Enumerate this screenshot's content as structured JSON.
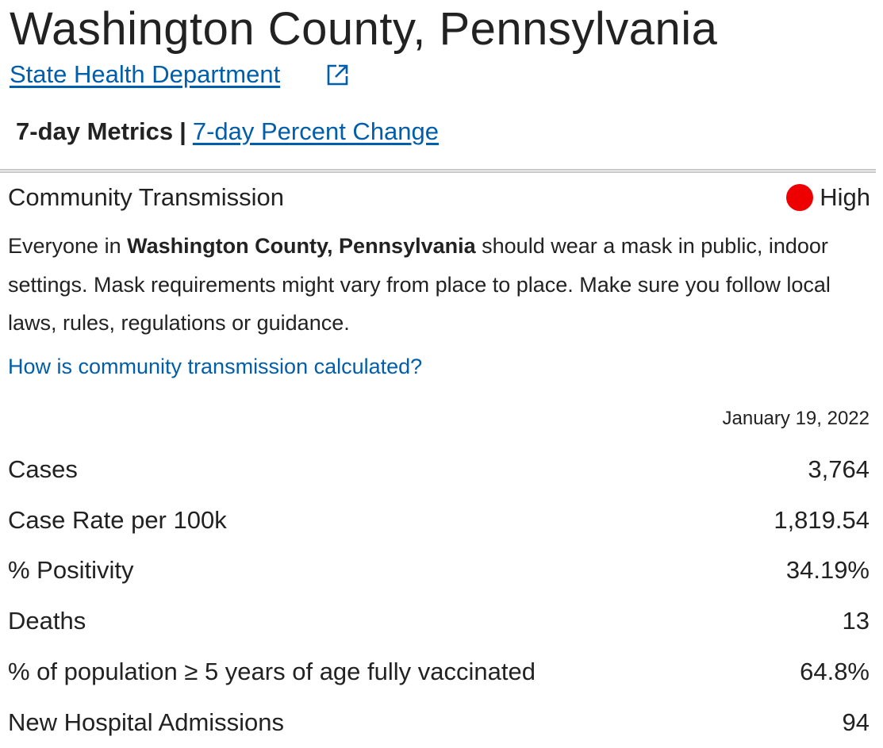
{
  "header": {
    "title": "Washington County, Pennsylvania",
    "health_link": "State Health Department",
    "external_icon": "external-link-icon"
  },
  "tabs": {
    "active": "7-day Metrics",
    "separator": "|",
    "link": "7-day Percent Change"
  },
  "transmission": {
    "label": "Community Transmission",
    "level": "High",
    "level_color": "#ee0000",
    "advice_prefix": "Everyone in ",
    "advice_county": "Washington County, Pennsylvania",
    "advice_suffix": " should wear a mask in public, indoor settings. Mask requirements might vary from place to place. Make sure you follow local laws, rules, regulations or guidance.",
    "calc_link": "How is community transmission calculated?"
  },
  "metrics": {
    "date": "January 19, 2022",
    "rows": [
      {
        "label": "Cases",
        "value": "3,764"
      },
      {
        "label": "Case Rate per 100k",
        "value": "1,819.54"
      },
      {
        "label": "% Positivity",
        "value": "34.19%"
      },
      {
        "label": "Deaths",
        "value": "13"
      },
      {
        "label": "% of population ≥ 5 years of age fully vaccinated",
        "value": "64.8%"
      },
      {
        "label": "New Hospital Admissions",
        "value": "94"
      }
    ]
  },
  "colors": {
    "link": "#005eaa",
    "text": "#222222",
    "divider": "#c8c8c8"
  }
}
